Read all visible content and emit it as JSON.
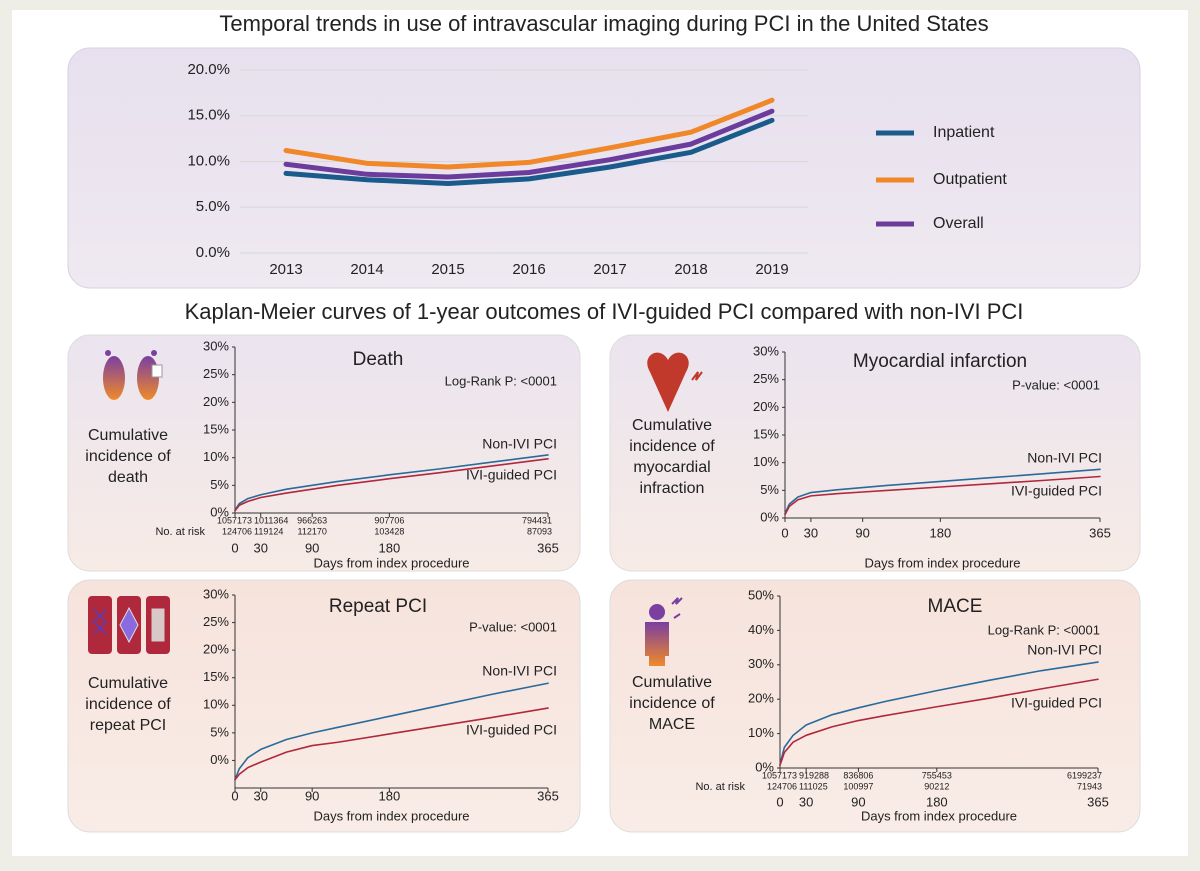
{
  "section_title": "Kaplan-Meier curves of 1-year outcomes of IVI-guided PCI compared with non-IVI PCI",
  "chart_data": [
    {
      "type": "line",
      "title": "Temporal trends in use of intravascular imaging during PCI in the United States",
      "categories": [
        "2013",
        "2014",
        "2015",
        "2016",
        "2017",
        "2018",
        "2019"
      ],
      "ylim": [
        0,
        20
      ],
      "yticks": [
        {
          "value": 0,
          "label": "0.0%"
        },
        {
          "value": 5,
          "label": "5.0%"
        },
        {
          "value": 10,
          "label": "10.0%"
        },
        {
          "value": 15,
          "label": "15.0%"
        },
        {
          "value": 20,
          "label": "20.0%"
        }
      ],
      "grid": true,
      "legend": "right",
      "series": [
        {
          "name": "Inpatient",
          "color": "#1b5b8c",
          "values": [
            8.7,
            8.0,
            7.6,
            8.1,
            9.4,
            11.0,
            14.5
          ]
        },
        {
          "name": "Outpatient",
          "color": "#f0882a",
          "values": [
            11.2,
            9.8,
            9.4,
            9.9,
            11.5,
            13.2,
            16.7
          ]
        },
        {
          "name": "Overall",
          "color": "#6b3c9c",
          "values": [
            9.7,
            8.6,
            8.3,
            8.8,
            10.2,
            11.9,
            15.5
          ]
        }
      ]
    },
    {
      "type": "line",
      "title": "Death",
      "side_label": [
        "Cumulative",
        "incidence of",
        "death"
      ],
      "annotation": "Log-Rank P: <0001",
      "xlabel": "Days from index procedure",
      "at_risk_label": "No. at risk",
      "x": [
        0,
        5,
        15,
        30,
        60,
        90,
        120,
        180,
        240,
        300,
        365
      ],
      "xlim": [
        0,
        365
      ],
      "xticks": [
        0,
        30,
        90,
        180,
        365
      ],
      "ylim": [
        0,
        30
      ],
      "yticks": [
        {
          "value": 0,
          "label": "0%"
        },
        {
          "value": 5,
          "label": "5%"
        },
        {
          "value": 10,
          "label": "10%"
        },
        {
          "value": 15,
          "label": "15%"
        },
        {
          "value": 20,
          "label": "20%"
        },
        {
          "value": 25,
          "label": "25%"
        },
        {
          "value": 30,
          "label": "30%"
        }
      ],
      "series": [
        {
          "name": "Non-IVI PCI",
          "color": "#2a6a9a",
          "values": [
            0.5,
            1.7,
            2.6,
            3.3,
            4.3,
            5.0,
            5.7,
            6.9,
            8.0,
            9.2,
            10.5
          ],
          "at_risk": [
            1057173,
            1011364,
            966263,
            907706,
            794431
          ]
        },
        {
          "name": "IVI-guided PCI",
          "color": "#b0283c",
          "values": [
            0.4,
            1.4,
            2.1,
            2.8,
            3.6,
            4.3,
            5.0,
            6.2,
            7.3,
            8.5,
            9.8
          ],
          "at_risk": [
            124706,
            119124,
            112170,
            103428,
            87093
          ]
        }
      ]
    },
    {
      "type": "line",
      "title": "Myocardial infarction",
      "side_label": [
        "Cumulative",
        "incidence of",
        "myocardial",
        "infraction"
      ],
      "annotation": "P-value: <0001",
      "xlabel": "Days from index procedure",
      "x": [
        0,
        5,
        15,
        30,
        60,
        90,
        120,
        180,
        240,
        300,
        365
      ],
      "xlim": [
        0,
        365
      ],
      "xticks": [
        0,
        30,
        90,
        180,
        365
      ],
      "ylim": [
        0,
        30
      ],
      "yticks": [
        {
          "value": 0,
          "label": "0%"
        },
        {
          "value": 5,
          "label": "5%"
        },
        {
          "value": 10,
          "label": "10%"
        },
        {
          "value": 15,
          "label": "15%"
        },
        {
          "value": 20,
          "label": "20%"
        },
        {
          "value": 25,
          "label": "25%"
        },
        {
          "value": 30,
          "label": "30%"
        }
      ],
      "series": [
        {
          "name": "Non-IVI PCI",
          "color": "#2a6a9a",
          "values": [
            0.8,
            2.5,
            3.8,
            4.6,
            5.1,
            5.5,
            5.9,
            6.6,
            7.3,
            8.0,
            8.8
          ]
        },
        {
          "name": "IVI-guided PCI",
          "color": "#b0283c",
          "values": [
            0.6,
            2.1,
            3.3,
            4.0,
            4.4,
            4.7,
            5.0,
            5.6,
            6.2,
            6.8,
            7.5
          ]
        }
      ]
    },
    {
      "type": "line",
      "title": "Repeat PCI",
      "side_label": [
        "Cumulative",
        "incidence of",
        "repeat PCI"
      ],
      "annotation": "P-value: <0001",
      "xlabel": "Days from index procedure",
      "x": [
        0,
        5,
        15,
        30,
        60,
        90,
        120,
        180,
        240,
        300,
        365
      ],
      "xlim": [
        0,
        365
      ],
      "xticks": [
        0,
        30,
        90,
        180,
        365
      ],
      "ylim": [
        -5,
        30
      ],
      "yticks": [
        {
          "value": 0,
          "label": "0%"
        },
        {
          "value": 5,
          "label": "5%"
        },
        {
          "value": 10,
          "label": "10%"
        },
        {
          "value": 15,
          "label": "15%"
        },
        {
          "value": 20,
          "label": "20%"
        },
        {
          "value": 25,
          "label": "25%"
        },
        {
          "value": 30,
          "label": "30%"
        }
      ],
      "series": [
        {
          "name": "Non-IVI PCI",
          "color": "#2a6a9a",
          "values": [
            -3.5,
            -1.5,
            0.5,
            2.0,
            3.8,
            5.0,
            6.0,
            8.0,
            10.0,
            12.0,
            14.0
          ]
        },
        {
          "name": "IVI-guided PCI",
          "color": "#b0283c",
          "values": [
            -3.5,
            -2.5,
            -1.3,
            -0.3,
            1.5,
            2.7,
            3.3,
            4.8,
            6.3,
            7.8,
            9.5
          ]
        }
      ]
    },
    {
      "type": "line",
      "title": "MACE",
      "side_label": [
        "Cumulative",
        "incidence of",
        "MACE"
      ],
      "annotation": "Log-Rank P: <0001",
      "xlabel": "Days from index procedure",
      "at_risk_label": "No. at risk",
      "x": [
        0,
        5,
        15,
        30,
        60,
        90,
        120,
        180,
        240,
        300,
        365
      ],
      "xlim": [
        0,
        365
      ],
      "xticks": [
        0,
        30,
        90,
        180,
        365
      ],
      "ylim": [
        0,
        50
      ],
      "yticks": [
        {
          "value": 0,
          "label": "0%"
        },
        {
          "value": 10,
          "label": "10%"
        },
        {
          "value": 20,
          "label": "20%"
        },
        {
          "value": 30,
          "label": "30%"
        },
        {
          "value": 40,
          "label": "40%"
        },
        {
          "value": 50,
          "label": "50%"
        }
      ],
      "series": [
        {
          "name": "Non-IVI PCI",
          "color": "#2a6a9a",
          "values": [
            1.0,
            6.0,
            9.5,
            12.5,
            15.5,
            17.5,
            19.3,
            22.5,
            25.5,
            28.3,
            30.8
          ],
          "at_risk": [
            1057173,
            919288,
            836806,
            755453,
            6199237
          ]
        },
        {
          "name": "IVI-guided PCI",
          "color": "#b0283c",
          "values": [
            0.8,
            4.5,
            7.5,
            9.5,
            12.0,
            13.8,
            15.2,
            17.8,
            20.3,
            23.0,
            25.8
          ],
          "at_risk": [
            124706,
            111025,
            100997,
            90212,
            71943
          ]
        }
      ]
    }
  ]
}
